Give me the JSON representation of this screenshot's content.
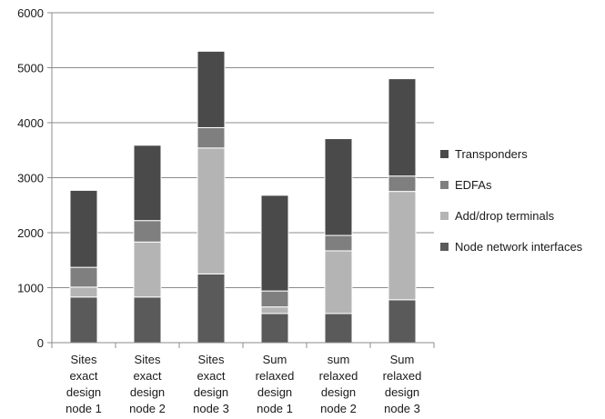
{
  "chart_data": {
    "type": "bar",
    "stacked": true,
    "categories": [
      [
        "Sites",
        "exact",
        "design",
        "node 1"
      ],
      [
        "Sites",
        "exact",
        "design",
        "node 2"
      ],
      [
        "Sites",
        "exact",
        "design",
        "node 3"
      ],
      [
        "Sum",
        "relaxed",
        "design",
        "node 1"
      ],
      [
        "sum",
        "relaxed",
        "design",
        "node 2"
      ],
      [
        "Sum",
        "relaxed",
        "design",
        "node 3"
      ]
    ],
    "series": [
      {
        "name": "Node network interfaces",
        "color": "#5a5a5a",
        "values": [
          830,
          830,
          1250,
          530,
          530,
          780
        ]
      },
      {
        "name": "Add/drop terminals",
        "color": "#b4b4b4",
        "values": [
          180,
          1000,
          2290,
          120,
          1140,
          1970
        ]
      },
      {
        "name": "EDFAs",
        "color": "#7f7f7f",
        "values": [
          360,
          390,
          370,
          290,
          280,
          280
        ]
      },
      {
        "name": "Transponders",
        "color": "#4a4a4a",
        "values": [
          1400,
          1370,
          1390,
          1740,
          1760,
          1770
        ]
      }
    ],
    "legend_order": [
      "Transponders",
      "EDFAs",
      "Add/drop terminals",
      "Node network interfaces"
    ],
    "ylim": [
      0,
      6000
    ],
    "yticks": [
      0,
      1000,
      2000,
      3000,
      4000,
      5000,
      6000
    ],
    "grid": "horizontal",
    "legend_position": "right",
    "title": "",
    "xlabel": "",
    "ylabel": ""
  }
}
